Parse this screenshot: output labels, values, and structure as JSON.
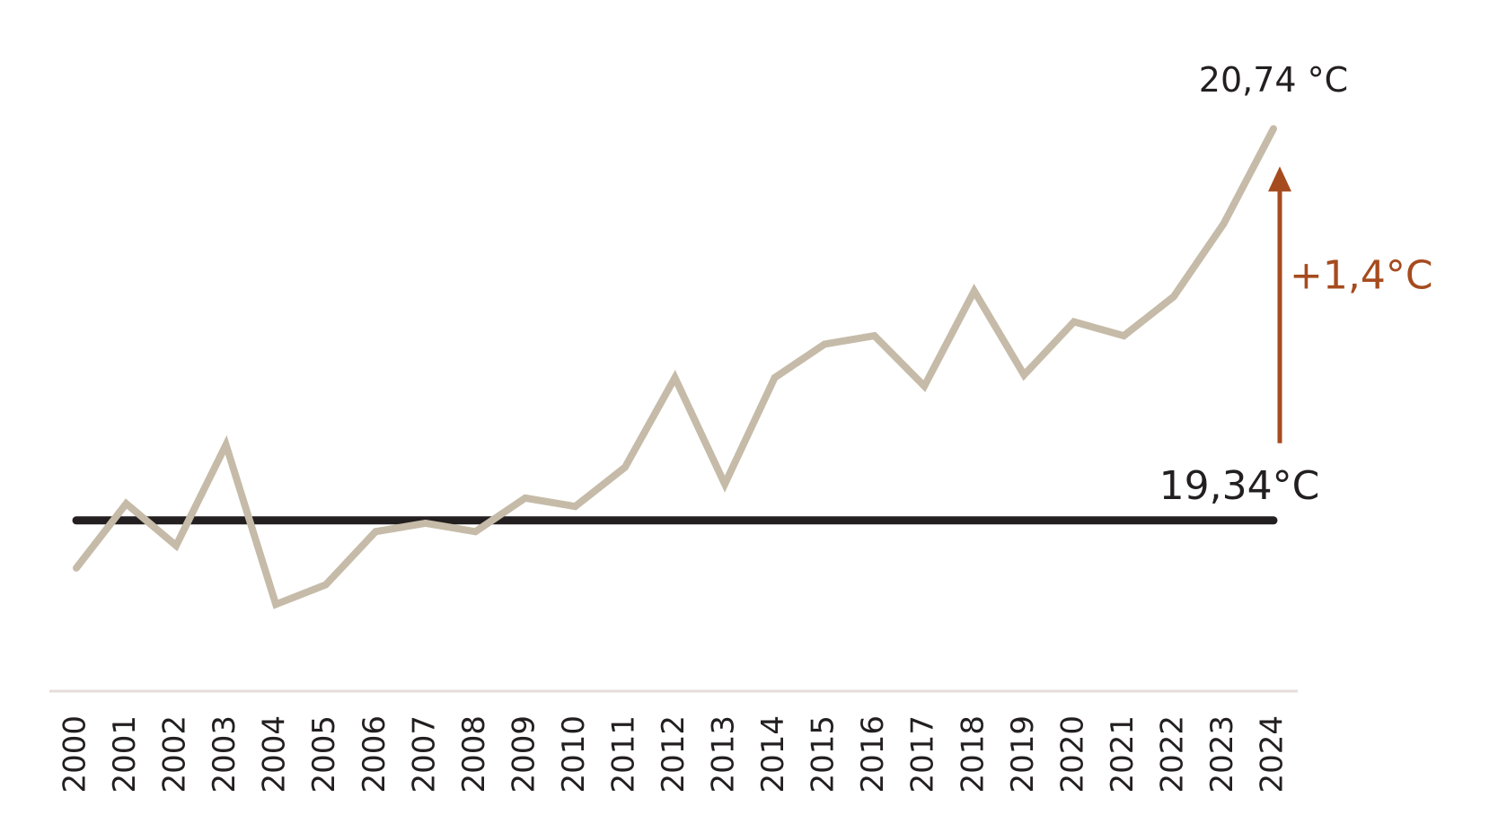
{
  "chart_data": {
    "type": "line",
    "x": [
      2000,
      2001,
      2002,
      2003,
      2004,
      2005,
      2006,
      2007,
      2008,
      2009,
      2010,
      2011,
      2012,
      2013,
      2014,
      2015,
      2016,
      2017,
      2018,
      2019,
      2020,
      2021,
      2022,
      2023,
      2024
    ],
    "series": [
      {
        "color": "#c5bba8",
        "values": [
          19.17,
          19.4,
          19.25,
          19.61,
          19.04,
          19.11,
          19.3,
          19.33,
          19.3,
          19.42,
          19.39,
          19.53,
          19.85,
          19.47,
          19.85,
          19.97,
          20.0,
          19.82,
          20.16,
          19.86,
          20.05,
          20.0,
          20.14,
          20.4,
          20.74
        ],
        "value_labels": [
          null,
          null,
          null,
          null,
          null,
          null,
          null,
          null,
          null,
          null,
          null,
          null,
          null,
          null,
          null,
          null,
          null,
          null,
          null,
          null,
          null,
          null,
          null,
          null,
          "20,74 °C"
        ]
      }
    ],
    "xlim": [
      2000,
      2024
    ],
    "ylim": [
      18.3,
      21.2
    ],
    "reference": {
      "value": 19.34,
      "label": "19,34°C",
      "color": "#231f20"
    },
    "change": {
      "value": 1.4,
      "label": "+1,4°C",
      "color": "#a64b1e"
    }
  }
}
